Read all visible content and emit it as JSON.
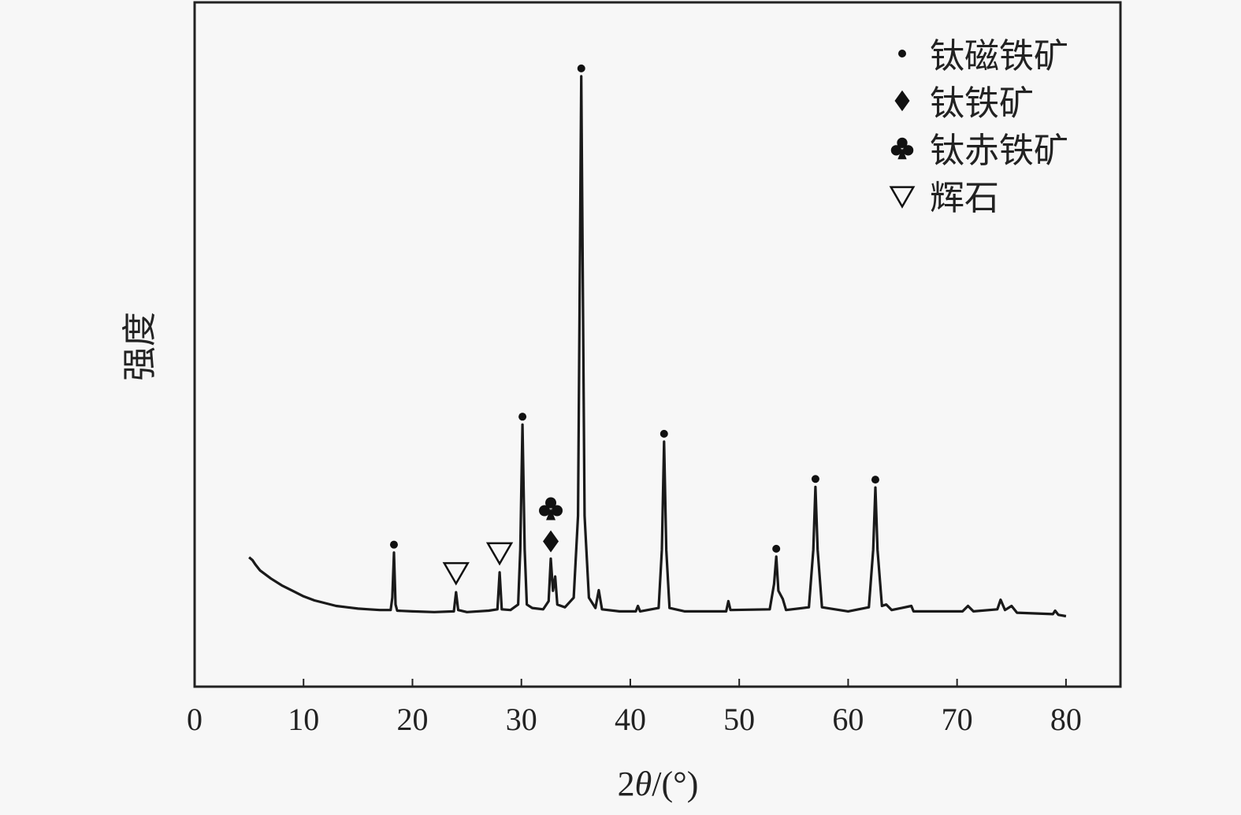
{
  "chart_data": {
    "type": "line",
    "title": "",
    "xlabel_prefix": "2",
    "xlabel_symbol": "θ",
    "xlabel_suffix": "/(°)",
    "ylabel": "强度",
    "xlim": [
      0,
      85
    ],
    "ylim": [
      0,
      100
    ],
    "xticks": [
      0,
      10,
      20,
      30,
      40,
      50,
      60,
      70,
      80
    ],
    "yticks_shown": false,
    "grid": false,
    "legend_position": "top-right",
    "line_color": "#1a1a1a",
    "legend": [
      {
        "symbol": "filled-circle",
        "label": "钛磁铁矿"
      },
      {
        "symbol": "filled-diamond",
        "label": "钛铁矿"
      },
      {
        "symbol": "club",
        "label": "钛赤铁矿"
      },
      {
        "symbol": "open-triangle-down",
        "label": "辉石"
      }
    ],
    "series": [
      {
        "x": [
          5,
          5.3,
          5.6,
          6,
          7,
          8,
          9,
          10,
          11,
          12,
          13,
          14,
          15,
          16,
          17,
          18,
          18.15,
          18.3,
          18.45,
          18.6,
          20,
          22,
          23.8,
          24.0,
          24.2,
          25,
          27,
          27.8,
          28.0,
          28.2,
          29,
          29.7,
          29.9,
          30.1,
          30.3,
          30.5,
          31,
          32,
          32.5,
          32.7,
          32.9,
          33.1,
          33.3,
          34,
          34.8,
          35.2,
          35.5,
          35.8,
          36.2,
          36.8,
          37.1,
          37.4,
          39,
          40.5,
          40.7,
          40.9,
          42.6,
          42.9,
          43.1,
          43.3,
          43.6,
          45,
          48.8,
          49.0,
          49.2,
          52.8,
          53.2,
          53.4,
          53.6,
          54,
          54.3,
          56.4,
          56.8,
          57.0,
          57.2,
          57.6,
          60,
          61.9,
          62.3,
          62.5,
          62.7,
          63.1,
          63.5,
          64,
          65.8,
          66,
          70.5,
          71,
          71.5,
          73.7,
          74,
          74.4,
          75,
          75.5,
          78.8,
          79,
          79.3,
          80
        ],
        "y": [
          18.9,
          18.5,
          17.8,
          17,
          15.8,
          14.8,
          14,
          13.2,
          12.6,
          12.2,
          11.8,
          11.6,
          11.4,
          11.3,
          11.2,
          11.2,
          13,
          19.6,
          12,
          11.1,
          11,
          10.9,
          11,
          13.8,
          11.2,
          10.9,
          11.1,
          11.3,
          16.7,
          11.3,
          11.2,
          12,
          20,
          38.3,
          20,
          12,
          11.5,
          11.3,
          12.5,
          18.7,
          14,
          16.1,
          12,
          11.6,
          13,
          25,
          89.2,
          25,
          13,
          11.5,
          14.1,
          11.3,
          11,
          11,
          11.8,
          11,
          11.5,
          20,
          35.8,
          20,
          11.5,
          11,
          11,
          12.5,
          11.2,
          11.3,
          15,
          19,
          14,
          12.8,
          11.2,
          11.6,
          20,
          29.2,
          20,
          11.6,
          11,
          11.6,
          20,
          29.1,
          20,
          11.8,
          12,
          11.2,
          11.8,
          11,
          11,
          11.8,
          11,
          11.3,
          12.7,
          11.2,
          11.8,
          10.8,
          10.6,
          11.1,
          10.5,
          10.3
        ]
      }
    ],
    "peak_markers": [
      {
        "x": 18.3,
        "y": 19.6,
        "symbols": [
          "filled-circle"
        ]
      },
      {
        "x": 24.0,
        "y": 13.8,
        "symbols": [
          "open-triangle-down"
        ]
      },
      {
        "x": 28.0,
        "y": 16.7,
        "symbols": [
          "open-triangle-down"
        ]
      },
      {
        "x": 30.1,
        "y": 38.3,
        "symbols": [
          "filled-circle"
        ]
      },
      {
        "x": 32.7,
        "y": 18.7,
        "symbols": [
          "filled-diamond",
          "club"
        ]
      },
      {
        "x": 35.5,
        "y": 89.2,
        "symbols": [
          "filled-circle"
        ]
      },
      {
        "x": 43.1,
        "y": 35.8,
        "symbols": [
          "filled-circle"
        ]
      },
      {
        "x": 53.4,
        "y": 19.0,
        "symbols": [
          "filled-circle"
        ]
      },
      {
        "x": 57.0,
        "y": 29.2,
        "symbols": [
          "filled-circle"
        ]
      },
      {
        "x": 62.5,
        "y": 29.1,
        "symbols": [
          "filled-circle"
        ]
      }
    ]
  }
}
